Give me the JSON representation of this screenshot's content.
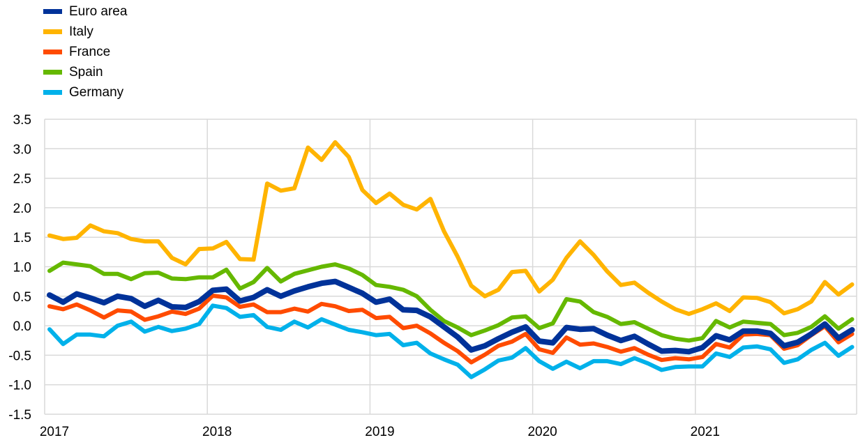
{
  "chart_data": {
    "type": "line",
    "title": "",
    "xlabel": "",
    "ylabel": "",
    "x_start": "2017-01",
    "x_end": "2021-12",
    "x_frequency": "monthly",
    "x_ticks": [
      "2017",
      "2018",
      "2019",
      "2020",
      "2021"
    ],
    "ylim": [
      -1.5,
      3.5
    ],
    "y_ticks": [
      "-1.5",
      "-1.0",
      "-0.5",
      "0.0",
      "0.5",
      "1.0",
      "1.5",
      "2.0",
      "2.5",
      "3.0",
      "3.5"
    ],
    "grid": true,
    "legend_position": "top-left",
    "series": [
      {
        "name": "Euro area",
        "color": "#003299",
        "values": [
          0.52,
          0.4,
          0.54,
          0.47,
          0.39,
          0.5,
          0.46,
          0.33,
          0.43,
          0.32,
          0.31,
          0.41,
          0.6,
          0.62,
          0.42,
          0.48,
          0.61,
          0.5,
          0.59,
          0.66,
          0.72,
          0.75,
          0.65,
          0.55,
          0.4,
          0.45,
          0.27,
          0.26,
          0.15,
          -0.02,
          -0.19,
          -0.41,
          -0.34,
          -0.22,
          -0.11,
          -0.02,
          -0.26,
          -0.29,
          -0.03,
          -0.06,
          -0.05,
          -0.16,
          -0.25,
          -0.18,
          -0.31,
          -0.43,
          -0.42,
          -0.44,
          -0.37,
          -0.17,
          -0.24,
          -0.09,
          -0.09,
          -0.13,
          -0.34,
          -0.28,
          -0.14,
          0.03,
          -0.21,
          -0.07
        ]
      },
      {
        "name": "Italy",
        "color": "#ffb400",
        "values": [
          1.53,
          1.47,
          1.49,
          1.7,
          1.6,
          1.57,
          1.47,
          1.43,
          1.43,
          1.15,
          1.04,
          1.3,
          1.31,
          1.42,
          1.13,
          1.12,
          2.41,
          2.29,
          2.33,
          3.02,
          2.81,
          3.11,
          2.86,
          2.3,
          2.08,
          2.24,
          2.05,
          1.97,
          2.15,
          1.6,
          1.17,
          0.68,
          0.5,
          0.61,
          0.91,
          0.93,
          0.58,
          0.78,
          1.15,
          1.43,
          1.2,
          0.92,
          0.69,
          0.73,
          0.56,
          0.41,
          0.28,
          0.2,
          0.28,
          0.38,
          0.25,
          0.48,
          0.47,
          0.4,
          0.21,
          0.28,
          0.41,
          0.74,
          0.53,
          0.7
        ]
      },
      {
        "name": "France",
        "color": "#ff4b00",
        "values": [
          0.33,
          0.28,
          0.36,
          0.26,
          0.14,
          0.26,
          0.24,
          0.1,
          0.16,
          0.24,
          0.2,
          0.29,
          0.51,
          0.48,
          0.32,
          0.36,
          0.23,
          0.23,
          0.29,
          0.24,
          0.37,
          0.33,
          0.25,
          0.27,
          0.13,
          0.15,
          -0.04,
          0.0,
          -0.13,
          -0.29,
          -0.43,
          -0.62,
          -0.49,
          -0.34,
          -0.27,
          -0.14,
          -0.4,
          -0.46,
          -0.2,
          -0.32,
          -0.3,
          -0.36,
          -0.44,
          -0.38,
          -0.49,
          -0.58,
          -0.55,
          -0.57,
          -0.53,
          -0.31,
          -0.37,
          -0.15,
          -0.14,
          -0.16,
          -0.39,
          -0.33,
          -0.16,
          -0.01,
          -0.28,
          -0.14
        ]
      },
      {
        "name": "Spain",
        "color": "#65b800",
        "values": [
          0.93,
          1.07,
          1.04,
          1.01,
          0.88,
          0.88,
          0.79,
          0.89,
          0.9,
          0.8,
          0.79,
          0.82,
          0.82,
          0.95,
          0.63,
          0.74,
          0.98,
          0.75,
          0.88,
          0.94,
          1.0,
          1.04,
          0.97,
          0.86,
          0.69,
          0.66,
          0.61,
          0.5,
          0.27,
          0.08,
          -0.03,
          -0.16,
          -0.08,
          0.01,
          0.14,
          0.16,
          -0.04,
          0.04,
          0.45,
          0.41,
          0.23,
          0.15,
          0.03,
          0.06,
          -0.05,
          -0.16,
          -0.22,
          -0.25,
          -0.21,
          0.08,
          -0.03,
          0.07,
          0.05,
          0.03,
          -0.16,
          -0.12,
          -0.02,
          0.16,
          -0.05,
          0.11
        ]
      },
      {
        "name": "Germany",
        "color": "#00b1ea",
        "values": [
          -0.06,
          -0.31,
          -0.15,
          -0.15,
          -0.18,
          0.0,
          0.07,
          -0.1,
          -0.02,
          -0.09,
          -0.05,
          0.03,
          0.34,
          0.3,
          0.15,
          0.18,
          -0.02,
          -0.07,
          0.07,
          -0.03,
          0.11,
          0.02,
          -0.07,
          -0.11,
          -0.16,
          -0.14,
          -0.33,
          -0.29,
          -0.47,
          -0.57,
          -0.66,
          -0.87,
          -0.74,
          -0.59,
          -0.54,
          -0.38,
          -0.6,
          -0.73,
          -0.61,
          -0.72,
          -0.6,
          -0.6,
          -0.65,
          -0.55,
          -0.64,
          -0.75,
          -0.7,
          -0.69,
          -0.69,
          -0.47,
          -0.53,
          -0.37,
          -0.35,
          -0.4,
          -0.63,
          -0.57,
          -0.41,
          -0.29,
          -0.51,
          -0.36
        ]
      }
    ]
  }
}
